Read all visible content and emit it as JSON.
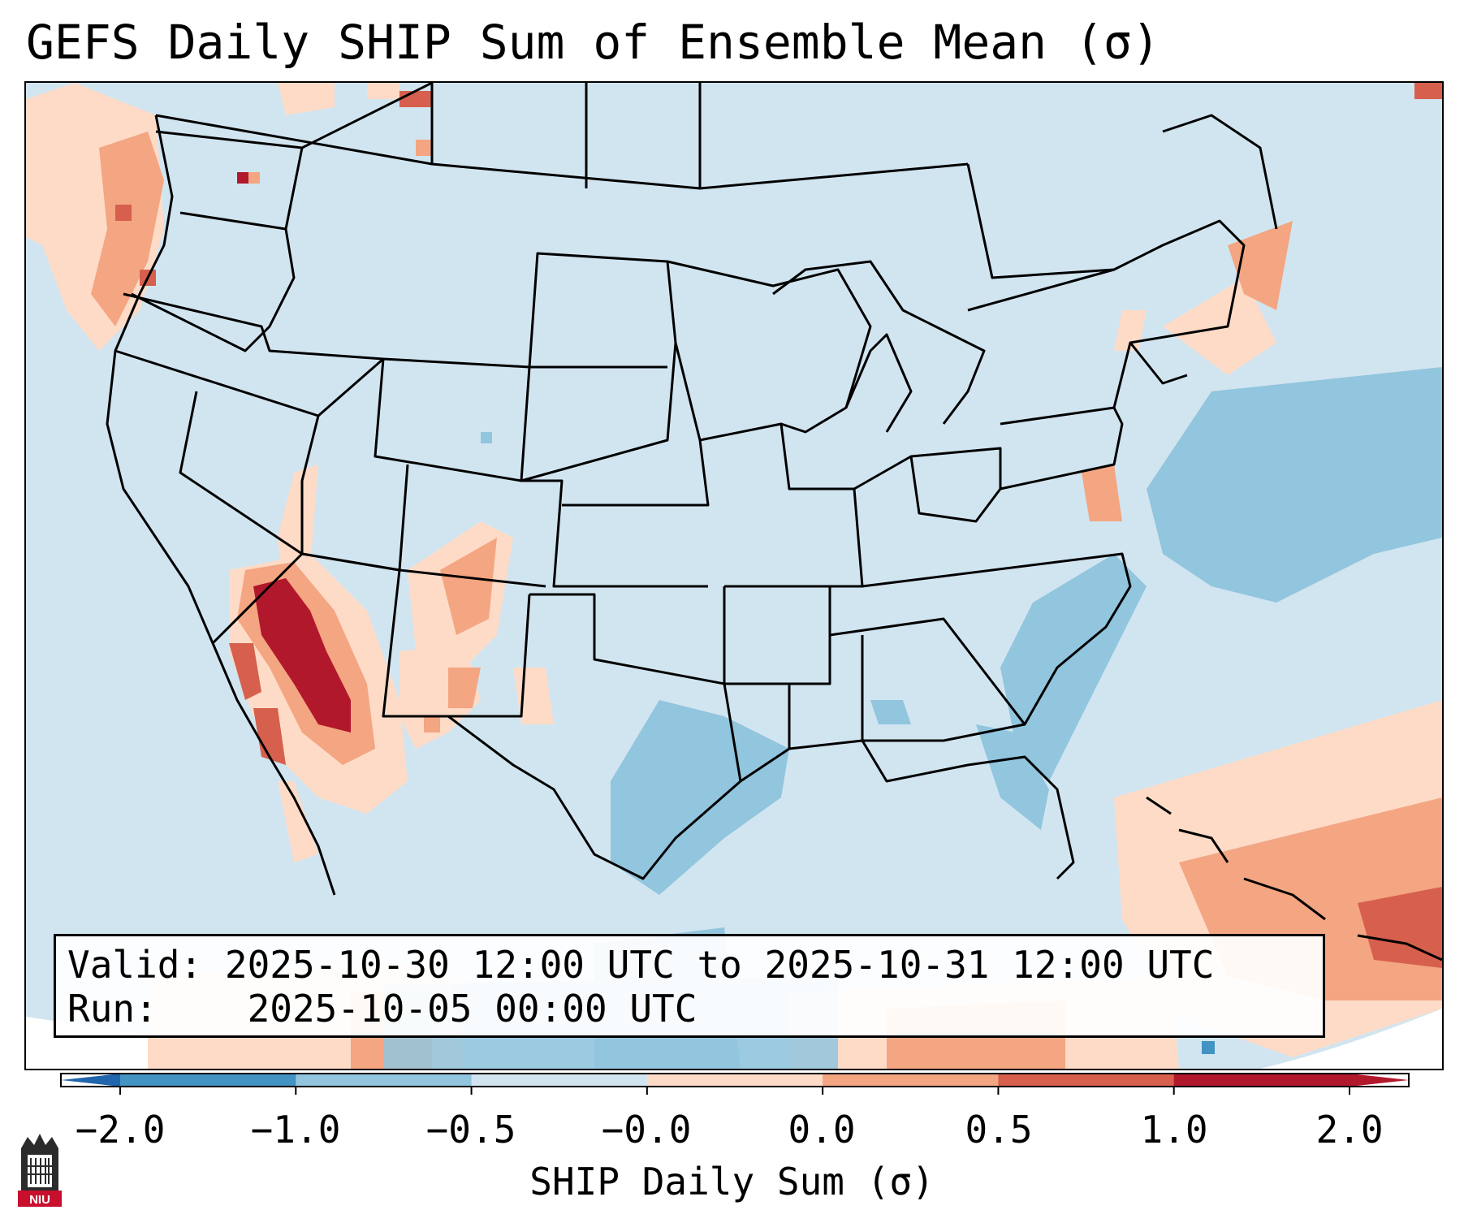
{
  "title": "GEFS Daily SHIP Sum of Ensemble Mean (σ)",
  "info": {
    "valid_label": "Valid:",
    "valid_value": "2025-10-30 12:00 UTC to 2025-10-31 12:00 UTC",
    "run_label": "Run:",
    "run_value": "2025-10-05 00:00 UTC"
  },
  "colorbar": {
    "label": "SHIP Daily Sum (σ)",
    "ticks": [
      "−2.0",
      "−1.0",
      "−0.5",
      "−0.0",
      "0.0",
      "0.5",
      "1.0",
      "2.0"
    ],
    "colors": [
      "#4393c3",
      "#92c5de",
      "#d1e5f0",
      "#fddbc7",
      "#f4a582",
      "#d6604d",
      "#b2182b"
    ],
    "extend_low": "#2166ac",
    "extend_high": "#b2182b"
  },
  "logo": {
    "text": "NIU"
  }
}
